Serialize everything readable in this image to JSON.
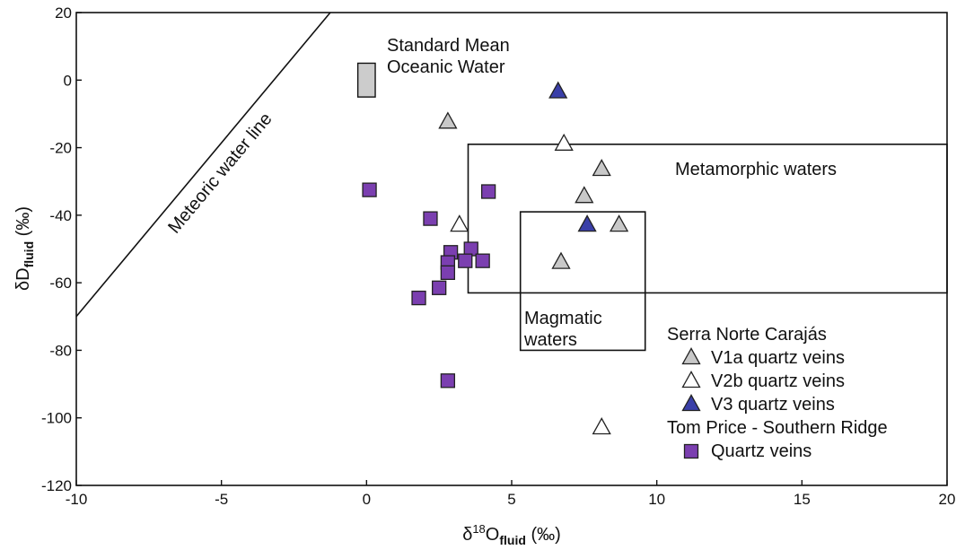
{
  "chart_data": {
    "type": "scatter",
    "x_axis": {
      "label_main": "δ",
      "label_sup": "18",
      "label_mid": "O",
      "label_sub": "fluid",
      "label_unit": " (‰)",
      "min": -10,
      "max": 20,
      "ticks": [
        -10,
        -5,
        0,
        5,
        10,
        15,
        20
      ]
    },
    "y_axis": {
      "label_main": "δD",
      "label_sub": "fluid",
      "label_unit": " (‰)",
      "min": -120,
      "max": 20,
      "ticks": [
        20,
        0,
        -20,
        -40,
        -60,
        -80,
        -100,
        -120
      ]
    },
    "grid": false,
    "meteoric_line": {
      "label": "Meteoric water line",
      "from": [
        -10,
        -70
      ],
      "to": [
        -1.25,
        20
      ]
    },
    "smow": {
      "label_line1": "Standard Mean",
      "label_line2": "Oceanic Water",
      "x_range": [
        -0.3,
        0.3
      ],
      "y_range": [
        -5,
        5
      ],
      "color": "#cccccc"
    },
    "fields": [
      {
        "name": "metamorphic",
        "label_lines": [
          "Metamorphic waters"
        ],
        "x_range": [
          3.5,
          20
        ],
        "y_range": [
          -63,
          -19
        ]
      },
      {
        "name": "magmatic",
        "label_lines": [
          "Magmatic",
          "waters"
        ],
        "x_range": [
          5.3,
          9.6
        ],
        "y_range": [
          -80,
          -39
        ]
      }
    ],
    "legend": {
      "position": "bottom-right",
      "groups": [
        {
          "title": "Serra Norte Carajás",
          "entries": [
            {
              "series": "V1a",
              "label": "V1a quartz veins"
            },
            {
              "series": "V2b",
              "label": "V2b quartz veins"
            },
            {
              "series": "V3",
              "label": "V3 quartz veins"
            }
          ]
        },
        {
          "title": "Tom Price - Southern Ridge",
          "entries": [
            {
              "series": "TP",
              "label": "Quartz veins"
            }
          ]
        }
      ]
    },
    "series": [
      {
        "key": "V1a",
        "name": "V1a quartz veins",
        "marker": "triangle",
        "color": "#c8c8c8",
        "points": [
          [
            2.8,
            -12.5
          ],
          [
            8.1,
            -26.5
          ],
          [
            7.5,
            -34.5
          ],
          [
            8.7,
            -43
          ],
          [
            6.7,
            -54
          ]
        ]
      },
      {
        "key": "V2b",
        "name": "V2b quartz veins",
        "marker": "triangle",
        "color": "#ffffff",
        "points": [
          [
            6.8,
            -19
          ],
          [
            3.2,
            -43
          ],
          [
            8.1,
            -103
          ]
        ]
      },
      {
        "key": "V3",
        "name": "V3 quartz veins",
        "marker": "triangle",
        "color": "#3a3fa8",
        "points": [
          [
            6.6,
            -3.5
          ],
          [
            7.6,
            -43
          ]
        ]
      },
      {
        "key": "TP",
        "name": "Quartz veins",
        "marker": "square",
        "color": "#7b3fb0",
        "points": [
          [
            0.1,
            -32.5
          ],
          [
            4.2,
            -33
          ],
          [
            2.2,
            -41
          ],
          [
            3.6,
            -50
          ],
          [
            2.9,
            -51
          ],
          [
            3.4,
            -53.5
          ],
          [
            4.0,
            -53.5
          ],
          [
            2.8,
            -54
          ],
          [
            2.8,
            -57
          ],
          [
            2.5,
            -61.5
          ],
          [
            1.8,
            -64.5
          ],
          [
            2.8,
            -89
          ]
        ]
      }
    ]
  }
}
